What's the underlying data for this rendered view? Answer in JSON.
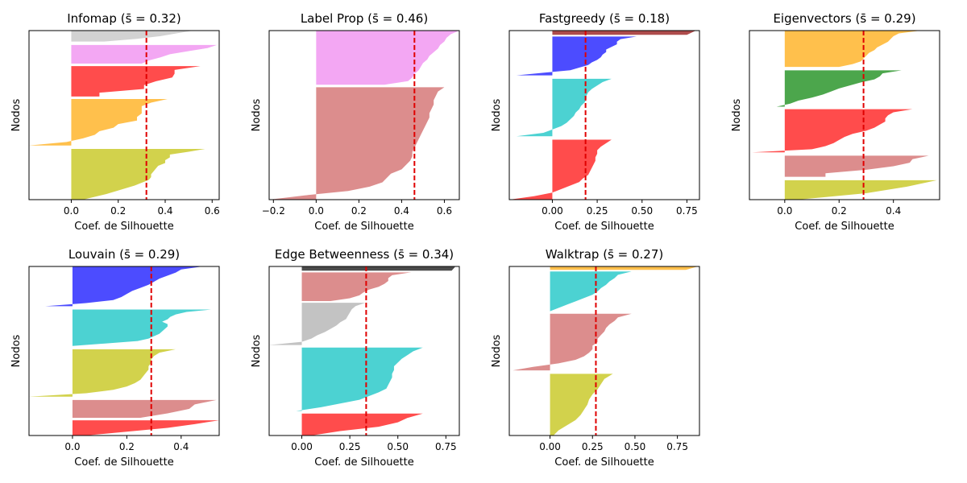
{
  "figure": {
    "background": "#ffffff",
    "mean_line_color": "#e00000"
  },
  "chart_data": [
    {
      "type": "area",
      "title": "Infomap",
      "title_stat": "(s̄ = 0.32)",
      "xlabel": "Coef. de Silhouette",
      "ylabel": "Nodos",
      "xlim": [
        -0.18,
        0.63
      ],
      "xticks": [
        0.0,
        0.2,
        0.4,
        0.6
      ],
      "xtick_labels": [
        "0.0",
        "0.2",
        "0.4",
        "0.6"
      ],
      "mean": 0.32,
      "clusters": [
        {
          "color": "#bfbfbf",
          "band": [
            0.0,
            0.065
          ],
          "values": [
            0.52,
            0.45,
            0.38,
            0.28,
            0.14
          ]
        },
        {
          "color": "#ee82ee",
          "band": [
            0.085,
            0.195
          ],
          "values": [
            0.62,
            0.58,
            0.5,
            0.42,
            0.38,
            0.33,
            0.3
          ]
        },
        {
          "color": "#ff0000",
          "band": [
            0.21,
            0.39
          ],
          "values": [
            0.55,
            0.44,
            0.44,
            0.43,
            0.36,
            0.31,
            0.31,
            0.12,
            0.12
          ]
        },
        {
          "color": "#ffa500",
          "band": [
            0.405,
            0.68
          ],
          "values": [
            0.41,
            0.34,
            0.3,
            0.3,
            0.3,
            0.28,
            0.28,
            0.2,
            0.18,
            0.12,
            0.1,
            0.05,
            -0.02,
            -0.18
          ]
        },
        {
          "color": "#bfbf00",
          "band": [
            0.7,
            1.0
          ],
          "values": [
            0.57,
            0.5,
            0.42,
            0.42,
            0.4,
            0.4,
            0.37,
            0.36,
            0.35,
            0.34,
            0.34,
            0.33,
            0.3,
            0.27,
            0.23,
            0.19,
            0.15,
            0.1,
            0.05
          ]
        }
      ]
    },
    {
      "type": "area",
      "title": "Label Prop",
      "title_stat": "(s̄ = 0.46)",
      "xlabel": "Coef. de Silhouette",
      "ylabel": "Nodos",
      "xlim": [
        -0.22,
        0.67
      ],
      "xticks": [
        -0.2,
        0.0,
        0.2,
        0.4,
        0.6
      ],
      "xtick_labels": [
        "−0.2",
        "0.0",
        "0.2",
        "0.4",
        "0.6"
      ],
      "mean": 0.46,
      "clusters": [
        {
          "color": "#ee82ee",
          "band": [
            0.0,
            0.32
          ],
          "values": [
            0.67,
            0.63,
            0.61,
            0.6,
            0.58,
            0.57,
            0.55,
            0.53,
            0.52,
            0.5,
            0.49,
            0.48,
            0.46,
            0.45,
            0.43,
            0.32
          ]
        },
        {
          "color": "#cd5c5c",
          "band": [
            0.335,
            1.0
          ],
          "values": [
            0.6,
            0.57,
            0.56,
            0.55,
            0.55,
            0.54,
            0.53,
            0.53,
            0.52,
            0.51,
            0.5,
            0.49,
            0.48,
            0.47,
            0.46,
            0.45,
            0.45,
            0.44,
            0.42,
            0.4,
            0.35,
            0.33,
            0.31,
            0.25,
            0.15,
            -0.05,
            -0.22
          ]
        }
      ]
    },
    {
      "type": "area",
      "title": "Fastgreedy",
      "title_stat": "(s̄ = 0.18)",
      "xlabel": "Coef. de Silhouette",
      "ylabel": "Nodos",
      "xlim": [
        -0.24,
        0.82
      ],
      "xticks": [
        0.0,
        0.25,
        0.5,
        0.75
      ],
      "xtick_labels": [
        "0.00",
        "0.25",
        "0.50",
        "0.75"
      ],
      "mean": 0.185,
      "clusters": [
        {
          "color": "#8b0000",
          "band": [
            0.0,
            0.025
          ],
          "values": [
            0.8,
            0.75
          ]
        },
        {
          "color": "#0000ff",
          "band": [
            0.035,
            0.265
          ],
          "values": [
            0.47,
            0.38,
            0.36,
            0.36,
            0.33,
            0.3,
            0.3,
            0.28,
            0.27,
            0.25,
            0.22,
            0.2,
            0.15,
            0.1,
            -0.05,
            -0.2
          ]
        },
        {
          "color": "#00bfbf",
          "band": [
            0.285,
            0.625
          ],
          "values": [
            0.33,
            0.28,
            0.25,
            0.22,
            0.2,
            0.19,
            0.19,
            0.18,
            0.16,
            0.15,
            0.13,
            0.12,
            0.1,
            0.08,
            0.05,
            0.0,
            -0.05,
            -0.2
          ]
        },
        {
          "color": "#ff0000",
          "band": [
            0.645,
            1.0
          ],
          "values": [
            0.33,
            0.3,
            0.27,
            0.25,
            0.25,
            0.24,
            0.24,
            0.23,
            0.22,
            0.21,
            0.2,
            0.17,
            0.15,
            0.1,
            0.05,
            0.0,
            -0.1,
            -0.24
          ]
        }
      ]
    },
    {
      "type": "area",
      "title": "Eigenvectors",
      "title_stat": "(s̄ = 0.29)",
      "xlabel": "Coef. de Silhouette",
      "ylabel": "Nodos",
      "xlim": [
        -0.13,
        0.57
      ],
      "xticks": [
        0.0,
        0.2,
        0.4
      ],
      "xtick_labels": [
        "0.0",
        "0.2",
        "0.4"
      ],
      "mean": 0.29,
      "clusters": [
        {
          "color": "#ffa500",
          "band": [
            0.0,
            0.215
          ],
          "values": [
            0.5,
            0.42,
            0.4,
            0.39,
            0.38,
            0.36,
            0.34,
            0.33,
            0.31,
            0.3,
            0.29,
            0.28,
            0.25,
            0.2
          ]
        },
        {
          "color": "#008000",
          "band": [
            0.235,
            0.45
          ],
          "values": [
            0.43,
            0.36,
            0.35,
            0.33,
            0.28,
            0.24,
            0.2,
            0.17,
            0.14,
            0.1,
            0.05,
            0.02,
            -0.03
          ]
        },
        {
          "color": "#ff0000",
          "band": [
            0.465,
            0.72
          ],
          "values": [
            0.47,
            0.4,
            0.38,
            0.37,
            0.37,
            0.35,
            0.33,
            0.3,
            0.25,
            0.22,
            0.2,
            0.18,
            0.15,
            0.1,
            -0.12
          ]
        },
        {
          "color": "#cd5c5c",
          "band": [
            0.74,
            0.865
          ],
          "values": [
            0.53,
            0.47,
            0.46,
            0.4,
            0.3,
            0.15,
            0.15
          ]
        },
        {
          "color": "#bfbf00",
          "band": [
            0.885,
            1.0
          ],
          "values": [
            0.56,
            0.45,
            0.3,
            0.05
          ]
        }
      ]
    },
    {
      "type": "area",
      "title": "Louvain",
      "title_stat": "(s̄ = 0.29)",
      "xlabel": "Coef. de Silhouette",
      "ylabel": "Nodos",
      "xlim": [
        -0.16,
        0.54
      ],
      "xticks": [
        0.0,
        0.2,
        0.4
      ],
      "xtick_labels": [
        "0.0",
        "0.2",
        "0.4"
      ],
      "mean": 0.29,
      "clusters": [
        {
          "color": "#0000ff",
          "band": [
            0.0,
            0.235
          ],
          "values": [
            0.48,
            0.4,
            0.38,
            0.35,
            0.32,
            0.3,
            0.28,
            0.25,
            0.22,
            0.2,
            0.18,
            0.15,
            0.05,
            -0.1
          ]
        },
        {
          "color": "#00bfbf",
          "band": [
            0.255,
            0.47
          ],
          "values": [
            0.51,
            0.42,
            0.38,
            0.36,
            0.35,
            0.33,
            0.35,
            0.35,
            0.34,
            0.33,
            0.32,
            0.3,
            0.28,
            0.24,
            0.12,
            0.0
          ]
        },
        {
          "color": "#bfbf00",
          "band": [
            0.49,
            0.77
          ],
          "values": [
            0.38,
            0.32,
            0.3,
            0.29,
            0.29,
            0.28,
            0.28,
            0.27,
            0.26,
            0.25,
            0.23,
            0.2,
            0.15,
            0.05,
            -0.16
          ]
        },
        {
          "color": "#cd5c5c",
          "band": [
            0.79,
            0.895
          ],
          "values": [
            0.53,
            0.45,
            0.43,
            0.35,
            0.25
          ]
        },
        {
          "color": "#ff0000",
          "band": [
            0.91,
            1.0
          ],
          "values": [
            0.54,
            0.45,
            0.35,
            0.2,
            0.05
          ]
        }
      ]
    },
    {
      "type": "area",
      "title": "Edge Betweenness",
      "title_stat": "(s̄ = 0.34)",
      "xlabel": "Coef. de Silhouette",
      "ylabel": "Nodos",
      "xlim": [
        -0.17,
        0.82
      ],
      "xticks": [
        0.0,
        0.25,
        0.5,
        0.75
      ],
      "xtick_labels": [
        "0.00",
        "0.25",
        "0.50",
        "0.75"
      ],
      "mean": 0.335,
      "clusters": [
        {
          "color": "#000000",
          "band": [
            0.0,
            0.025
          ],
          "values": [
            0.8,
            0.78
          ]
        },
        {
          "color": "#cd5c5c",
          "band": [
            0.035,
            0.205
          ],
          "values": [
            0.57,
            0.47,
            0.45,
            0.45,
            0.43,
            0.4,
            0.35,
            0.32,
            0.3,
            0.25,
            0.15
          ]
        },
        {
          "color": "#a9a9a9",
          "band": [
            0.215,
            0.465
          ],
          "values": [
            0.33,
            0.28,
            0.26,
            0.25,
            0.24,
            0.23,
            0.2,
            0.18,
            0.15,
            0.12,
            0.08,
            0.05,
            0.0,
            -0.17
          ]
        },
        {
          "color": "#00bfbf",
          "band": [
            0.48,
            0.855
          ],
          "values": [
            0.63,
            0.58,
            0.55,
            0.52,
            0.5,
            0.48,
            0.48,
            0.47,
            0.47,
            0.46,
            0.45,
            0.44,
            0.4,
            0.35,
            0.3,
            0.2,
            0.1,
            -0.03
          ]
        },
        {
          "color": "#ff0000",
          "band": [
            0.87,
            1.0
          ],
          "values": [
            0.63,
            0.55,
            0.5,
            0.4,
            0.2,
            0.05
          ]
        }
      ]
    },
    {
      "type": "area",
      "title": "Walktrap",
      "title_stat": "(s̄ = 0.27)",
      "xlabel": "Coef. de Silhouette",
      "ylabel": "Nodos",
      "xlim": [
        -0.24,
        0.88
      ],
      "xticks": [
        0.0,
        0.25,
        0.5,
        0.75
      ],
      "xtick_labels": [
        "0.00",
        "0.25",
        "0.50",
        "0.75"
      ],
      "mean": 0.27,
      "clusters": [
        {
          "color": "#ffa500",
          "band": [
            0.0,
            0.02
          ],
          "values": [
            0.87,
            0.8
          ]
        },
        {
          "color": "#00bfbf",
          "band": [
            0.03,
            0.265
          ],
          "values": [
            0.48,
            0.4,
            0.38,
            0.35,
            0.33,
            0.3,
            0.28,
            0.25,
            0.2,
            0.15,
            0.1,
            0.05,
            0.0
          ]
        },
        {
          "color": "#cd5c5c",
          "band": [
            0.28,
            0.615
          ],
          "values": [
            0.48,
            0.4,
            0.38,
            0.35,
            0.33,
            0.32,
            0.3,
            0.28,
            0.28,
            0.25,
            0.25,
            0.23,
            0.2,
            0.15,
            0.05,
            -0.1,
            -0.22
          ]
        },
        {
          "color": "#bfbf00",
          "band": [
            0.635,
            1.0
          ],
          "values": [
            0.37,
            0.32,
            0.3,
            0.28,
            0.25,
            0.23,
            0.22,
            0.2,
            0.18,
            0.15,
            0.1,
            0.05,
            0.02
          ]
        }
      ]
    }
  ]
}
